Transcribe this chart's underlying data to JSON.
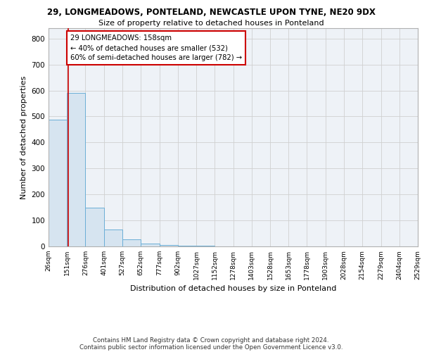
{
  "title1": "29, LONGMEADOWS, PONTELAND, NEWCASTLE UPON TYNE, NE20 9DX",
  "title2": "Size of property relative to detached houses in Ponteland",
  "xlabel": "Distribution of detached houses by size in Ponteland",
  "ylabel": "Number of detached properties",
  "annotation_line1": "29 LONGMEADOWS: 158sqm",
  "annotation_line2": "← 40% of detached houses are smaller (532)",
  "annotation_line3": "60% of semi-detached houses are larger (782) →",
  "property_size": 158,
  "bin_edges": [
    26,
    151,
    276,
    401,
    527,
    652,
    777,
    902,
    1027,
    1152,
    1278,
    1403,
    1528,
    1653,
    1778,
    1903,
    2028,
    2154,
    2279,
    2404,
    2529
  ],
  "bar_heights": [
    487,
    592,
    150,
    65,
    28,
    10,
    5,
    3,
    2,
    1,
    1,
    1,
    0,
    0,
    0,
    0,
    0,
    0,
    0,
    0
  ],
  "bar_color": "#d6e4f0",
  "bar_edge_color": "#6baed6",
  "vline_color": "#cc0000",
  "annotation_box_color": "#cc0000",
  "ylim": [
    0,
    840
  ],
  "yticks": [
    0,
    100,
    200,
    300,
    400,
    500,
    600,
    700,
    800
  ],
  "grid_color": "#d0d0d0",
  "footer1": "Contains HM Land Registry data © Crown copyright and database right 2024.",
  "footer2": "Contains public sector information licensed under the Open Government Licence v3.0."
}
